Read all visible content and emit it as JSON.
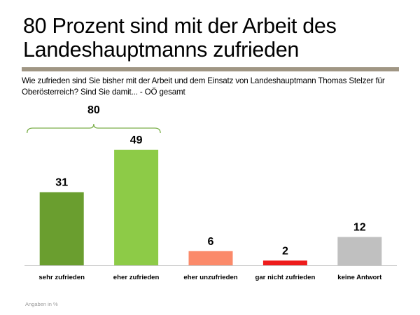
{
  "header": {
    "title": "80 Prozent sind mit der Arbeit des Landeshauptmanns zufrieden",
    "subtitle": "Wie zufrieden sind Sie bisher mit der Arbeit und dem Einsatz von Landeshauptmann Thomas Stelzer für Oberösterreich? Sind Sie damit... - OÖ gesamt"
  },
  "footnote": "Angaben in %",
  "chart_data": {
    "type": "bar",
    "title": "80 Prozent sind mit der Arbeit des Landeshauptmanns zufrieden",
    "xlabel": "",
    "ylabel": "",
    "unit": "%",
    "ylim": [
      0,
      55
    ],
    "grid": false,
    "categories": [
      "sehr zufrieden",
      "eher zufrieden",
      "eher unzufrieden",
      "gar nicht zufrieden",
      "keine Antwort"
    ],
    "values": [
      31,
      49,
      6,
      2,
      12
    ],
    "colors": [
      "#6a9e2f",
      "#8dcb47",
      "#fb8a6a",
      "#ee1b1b",
      "#c0c0c0"
    ],
    "annotations": [
      {
        "type": "brace",
        "label": "80",
        "spans": [
          "sehr zufrieden",
          "eher zufrieden"
        ],
        "color": "#7aae49"
      }
    ]
  }
}
